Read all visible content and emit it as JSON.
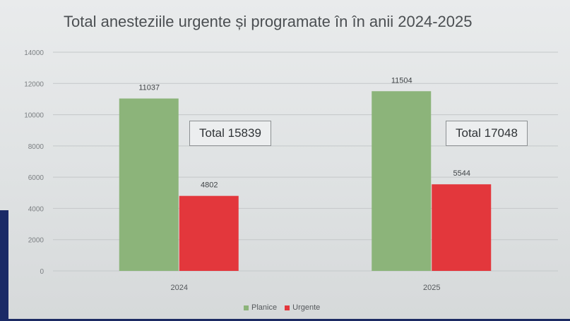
{
  "title": "Total anesteziile urgente și programate în în anii 2024-2025",
  "chart_data": {
    "type": "bar",
    "title": "Total anesteziile urgente și programate în în anii 2024-2025",
    "categories": [
      "2024",
      "2025"
    ],
    "series": [
      {
        "name": "Planice",
        "color": "#8cb47a",
        "values": [
          11037,
          11504
        ]
      },
      {
        "name": "Urgente",
        "color": "#e3373c",
        "values": [
          4802,
          5544
        ]
      }
    ],
    "ylim": [
      0,
      14000
    ],
    "yticks": [
      "0",
      "2000",
      "4000",
      "6000",
      "8000",
      "10000",
      "12000",
      "14000"
    ],
    "xlabel": "",
    "ylabel": "",
    "grid": true,
    "legend_position": "bottom",
    "annotations": [
      "Total 15839",
      "Total 17048"
    ]
  },
  "totals": [
    "Total 15839",
    "Total 17048"
  ],
  "legend": [
    {
      "label": "Planice",
      "color": "#8cb47a"
    },
    {
      "label": "Urgente",
      "color": "#e3373c"
    }
  ]
}
